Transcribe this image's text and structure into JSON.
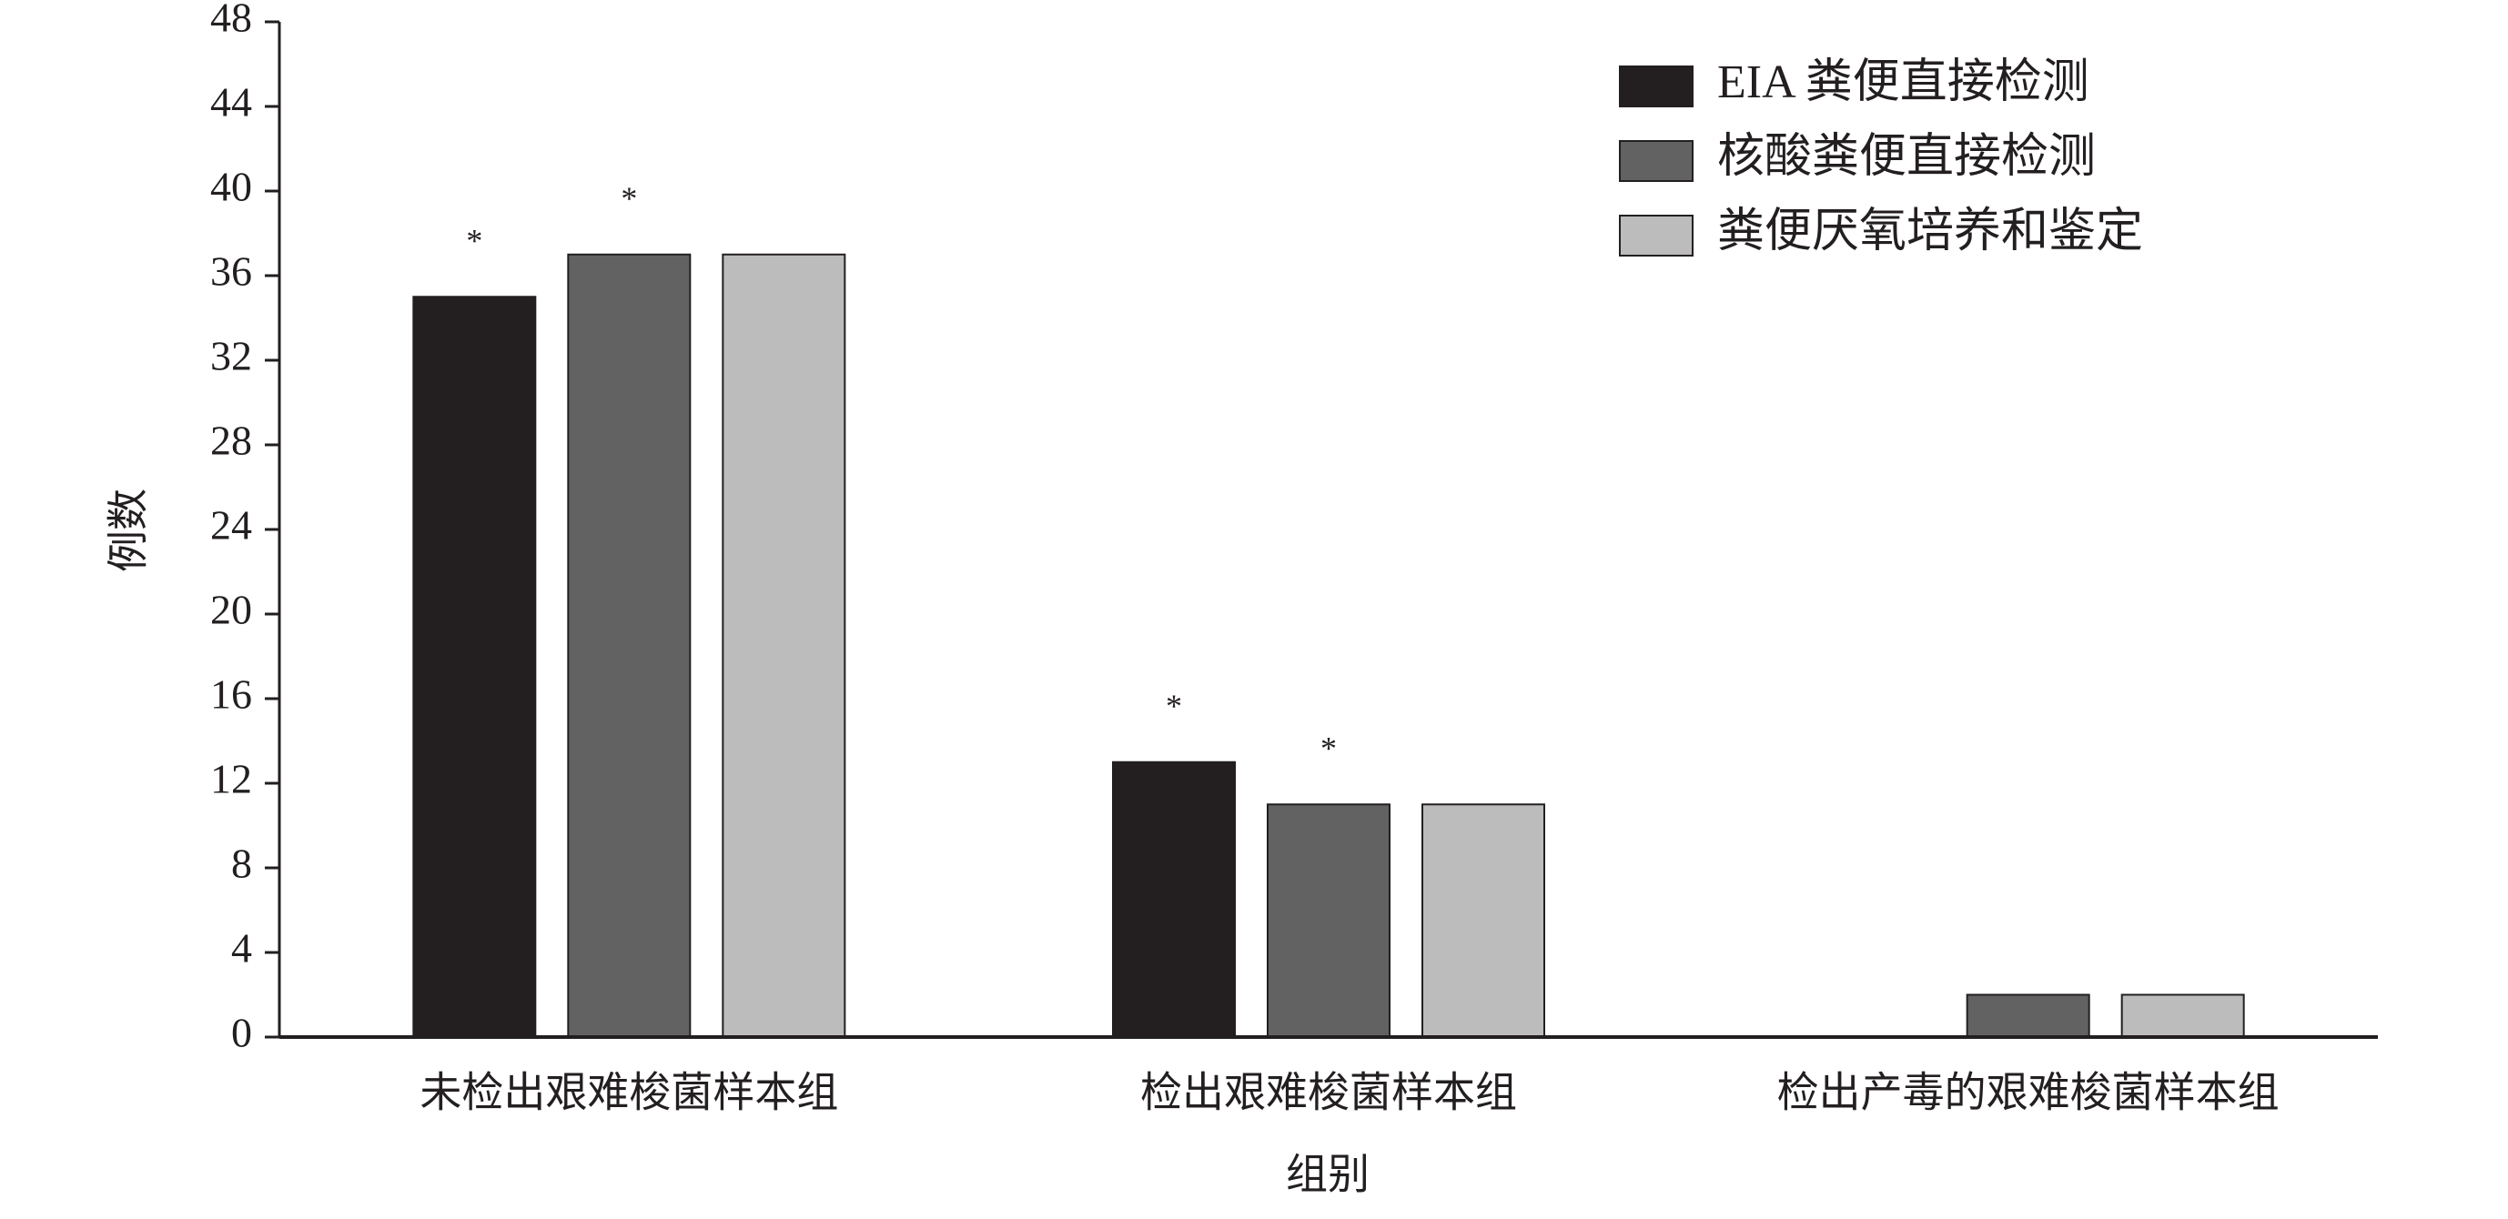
{
  "chart_data": {
    "type": "bar",
    "x_label": "组别",
    "y_label": "例数",
    "categories": [
      "未检出艰难梭菌样本组",
      "检出艰难梭菌样本组",
      "检出产毒的艰难梭菌样本组"
    ],
    "series": [
      {
        "name": "EIA 粪便直接检测",
        "color": "#231f20",
        "values": [
          35,
          13,
          0
        ],
        "annotations": [
          "*",
          "*",
          null
        ]
      },
      {
        "name": "核酸粪便直接检测",
        "color": "#636262",
        "values": [
          37,
          11,
          2
        ],
        "annotations": [
          "*",
          "*",
          null
        ]
      },
      {
        "name": "粪便厌氧培养和鉴定",
        "color": "#bcbcbc",
        "values": [
          37,
          11,
          2
        ]
      }
    ],
    "ylim": [
      0,
      48
    ],
    "yticks": [
      0,
      4,
      8,
      12,
      16,
      20,
      24,
      28,
      32,
      36,
      40,
      44,
      48
    ],
    "grid": false,
    "legend": "upper right"
  }
}
